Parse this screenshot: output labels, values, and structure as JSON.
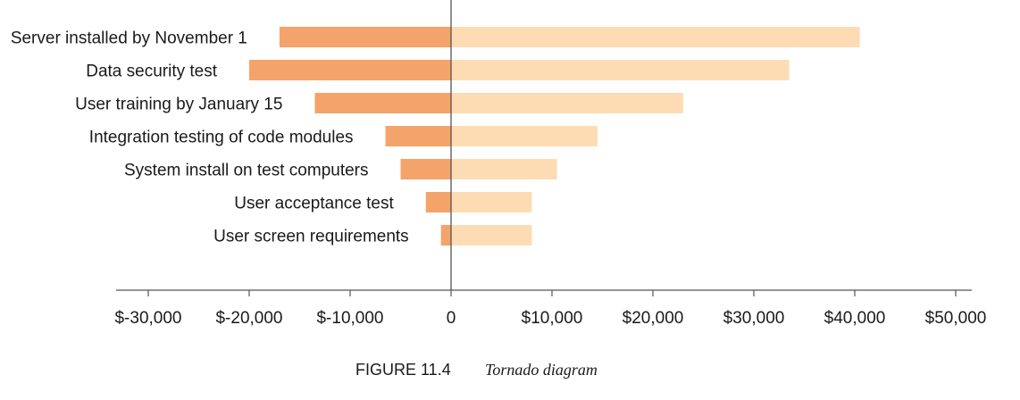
{
  "caption": {
    "figure_label": "FIGURE 11.4",
    "title": "Tornado diagram"
  },
  "colors": {
    "negative_bar": "#f4a46a",
    "positive_bar": "#fddcb4",
    "axis": "#555555"
  },
  "chart_data": {
    "type": "bar",
    "orientation": "horizontal",
    "title": "Tornado diagram",
    "xlabel": "",
    "ylabel": "",
    "categories": [
      "Server installed by November 1",
      "Data security test",
      "User training by January 15",
      "Integration testing of code modules",
      "System install on test computers",
      "User acceptance test",
      "User screen requirements"
    ],
    "series": [
      {
        "values": [
          -17000,
          -20000,
          -13500,
          -6500,
          -5000,
          -2500,
          -1000
        ]
      },
      {
        "values": [
          40500,
          33500,
          23000,
          14500,
          10500,
          8000,
          8000
        ]
      }
    ],
    "xlim": [
      -40000,
      57500
    ],
    "xticks": [
      -30000,
      -20000,
      -10000,
      0,
      10000,
      20000,
      30000,
      40000,
      50000
    ],
    "xtick_labels": [
      "$-30,000",
      "$-20,000",
      "$-10,000",
      "0",
      "$10,000",
      "$20,000",
      "$30,000",
      "$40,000",
      "$50,000"
    ],
    "grid": false,
    "legend": "none"
  }
}
